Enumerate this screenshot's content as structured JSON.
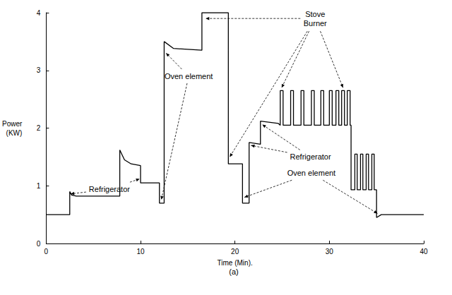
{
  "chart_data": {
    "type": "line",
    "color": "#000000",
    "x_label": "Time (Min).",
    "y_label": "Power\n(KW)",
    "caption": "(a)",
    "xlim": [
      0,
      40
    ],
    "xticks": [
      0,
      10,
      20,
      30,
      40
    ],
    "ylim": [
      0,
      4
    ],
    "yticks": [
      0,
      1,
      2,
      3,
      4
    ],
    "grid": false,
    "x": [
      0,
      2.5,
      2.5,
      2.7,
      3.2,
      7.8,
      7.8,
      8.3,
      9,
      10,
      10,
      12,
      12,
      12.5,
      12.5,
      13.5,
      16.5,
      16.5,
      19.3,
      19.3,
      20.8,
      20.8,
      21.5,
      21.5,
      22.7,
      22.7,
      24.6,
      24.8,
      24.8,
      25.1,
      25.1,
      25.9,
      25.9,
      26.2,
      26.2,
      27.0,
      27.0,
      27.3,
      27.3,
      28.1,
      28.1,
      28.4,
      28.4,
      29.1,
      29.1,
      29.4,
      29.4,
      30.0,
      30.0,
      30.3,
      30.3,
      30.7,
      30.7,
      31.0,
      31.0,
      31.3,
      31.3,
      31.6,
      31.6,
      31.9,
      31.9,
      32.2,
      32.2,
      32.3,
      32.3,
      32.7,
      32.7,
      32.95,
      32.95,
      33.3,
      33.3,
      33.55,
      33.55,
      33.9,
      33.9,
      34.15,
      34.15,
      34.5,
      34.5,
      34.75,
      34.75,
      35,
      35,
      35.5,
      40
    ],
    "values": [
      0.5,
      0.5,
      0.9,
      0.84,
      0.82,
      0.82,
      1.62,
      1.45,
      1.38,
      1.35,
      1.05,
      1.05,
      0.7,
      0.7,
      3.5,
      3.38,
      3.35,
      4.0,
      4.0,
      1.38,
      1.38,
      0.7,
      0.7,
      1.75,
      1.72,
      2.12,
      2.08,
      2.05,
      2.65,
      2.65,
      2.05,
      2.05,
      2.65,
      2.65,
      2.05,
      2.05,
      2.65,
      2.65,
      2.05,
      2.05,
      2.65,
      2.65,
      2.05,
      2.05,
      2.65,
      2.65,
      2.05,
      2.05,
      2.65,
      2.65,
      2.05,
      2.05,
      2.65,
      2.65,
      2.05,
      2.05,
      2.65,
      2.65,
      2.05,
      2.05,
      2.65,
      2.65,
      2.05,
      2.05,
      0.93,
      0.93,
      1.55,
      1.55,
      0.93,
      0.93,
      1.55,
      1.55,
      0.93,
      0.93,
      1.55,
      1.55,
      0.93,
      0.93,
      1.55,
      1.55,
      0.93,
      0.93,
      0.45,
      0.5,
      0.5
    ],
    "annotations": [
      {
        "text": "Refrigerator"
      },
      {
        "text": "Refrigerator"
      },
      {
        "text": "Oven element"
      },
      {
        "text": "Oven element"
      },
      {
        "text": "Stove\nBurner"
      }
    ]
  }
}
